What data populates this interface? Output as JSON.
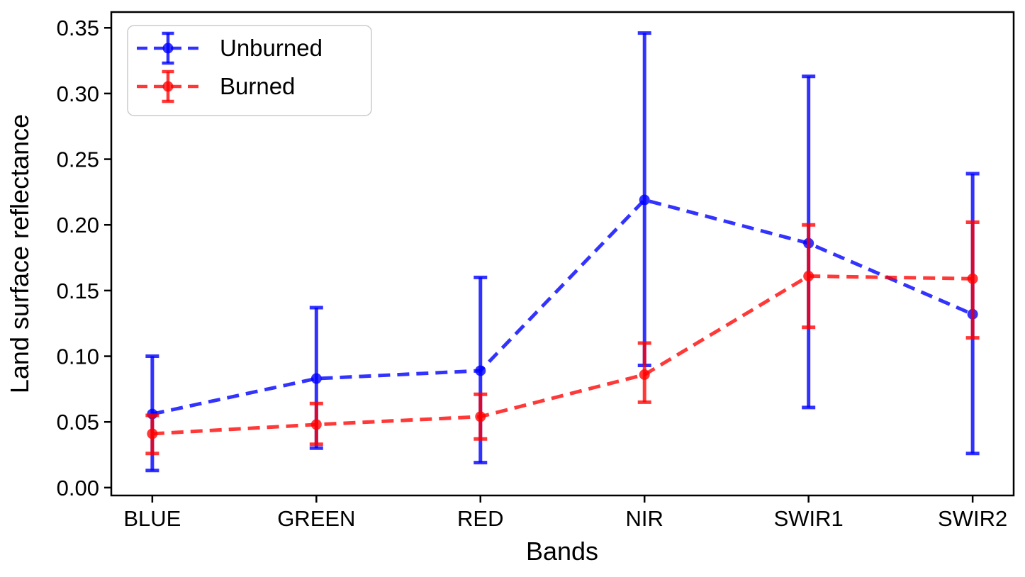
{
  "chart_data": {
    "type": "line",
    "title": "",
    "xlabel": "Bands",
    "ylabel": "Land surface reflectance",
    "categories": [
      "BLUE",
      "GREEN",
      "RED",
      "NIR",
      "SWIR1",
      "SWIR2"
    ],
    "yticks": [
      0.0,
      0.05,
      0.1,
      0.15,
      0.2,
      0.25,
      0.3,
      0.35
    ],
    "ylim": [
      -0.006,
      0.362
    ],
    "grid": false,
    "legend": {
      "position": "upper-left"
    },
    "series": [
      {
        "name": "Unburned",
        "color": "#0000ff",
        "alpha": 0.8,
        "linestyle": "dashed",
        "marker": "circle",
        "values": [
          0.056,
          0.083,
          0.089,
          0.219,
          0.186,
          0.132
        ],
        "upper_values": [
          0.1,
          0.137,
          0.16,
          0.346,
          0.313,
          0.239
        ],
        "lower_values": [
          0.013,
          0.03,
          0.019,
          0.093,
          0.061,
          0.026
        ]
      },
      {
        "name": "Burned",
        "color": "#ff0000",
        "alpha": 0.78,
        "linestyle": "dashed",
        "marker": "circle",
        "values": [
          0.041,
          0.048,
          0.054,
          0.086,
          0.161,
          0.159
        ],
        "upper_values": [
          0.055,
          0.064,
          0.071,
          0.11,
          0.2,
          0.202
        ],
        "lower_values": [
          0.026,
          0.033,
          0.037,
          0.065,
          0.122,
          0.114
        ]
      }
    ]
  }
}
